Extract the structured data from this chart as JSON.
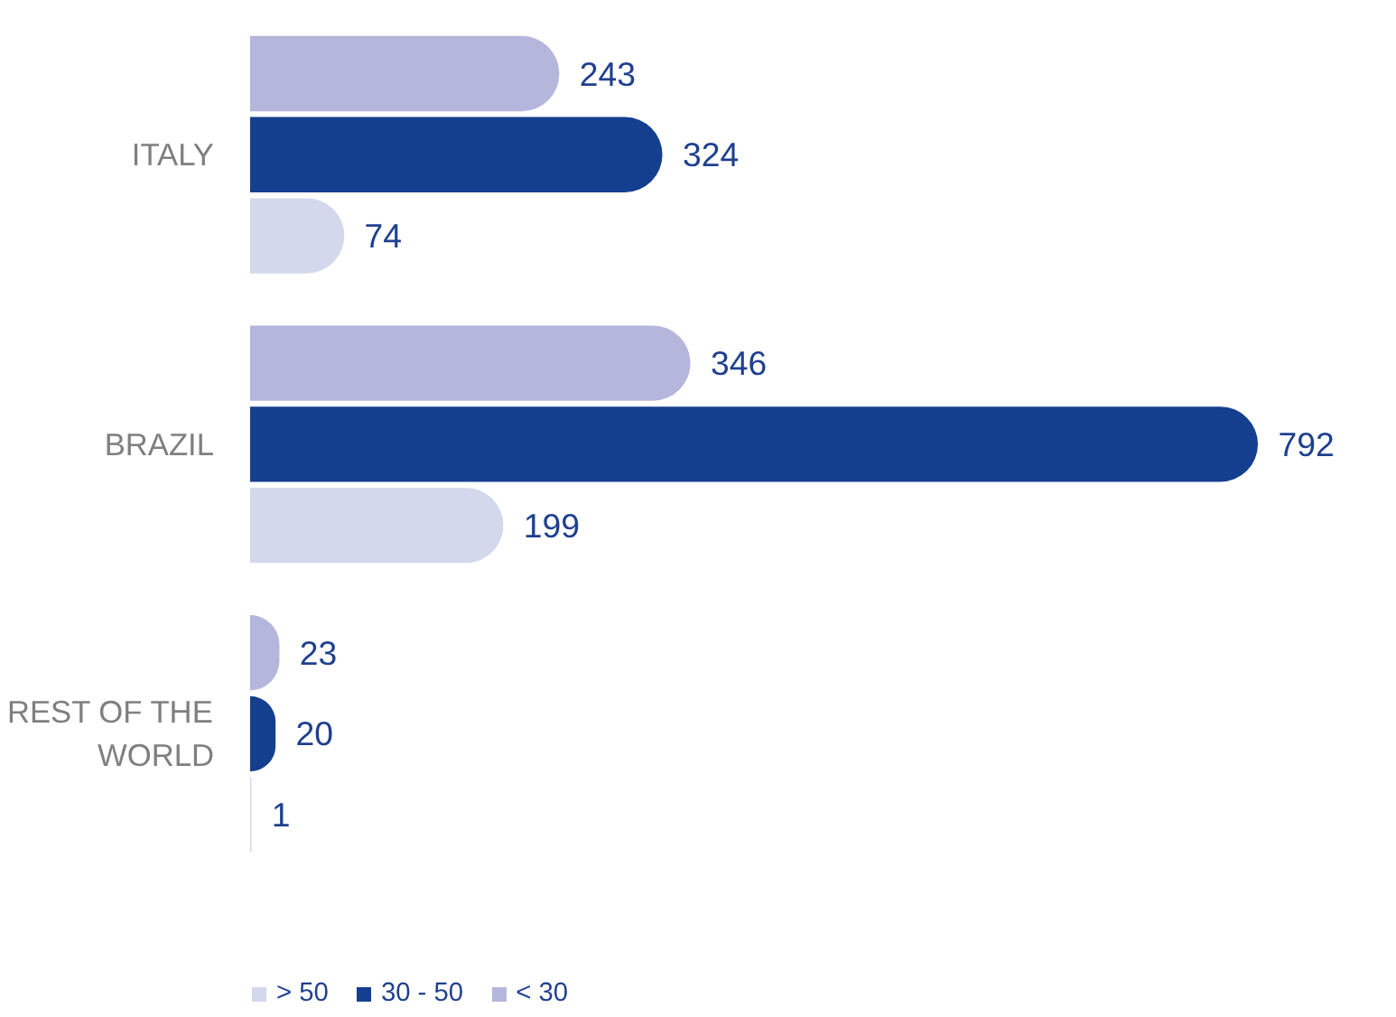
{
  "chart_data": {
    "type": "bar",
    "orientation": "horizontal",
    "data_labels": true,
    "categories": [
      "ITALY",
      "BRAZIL",
      "REST OF THE WORLD"
    ],
    "legend": "bottom left",
    "grid": false,
    "tick_labels": "y",
    "series": [
      {
        "name": "> 50",
        "color": "#d3d8ec",
        "values": [
          74,
          199,
          1
        ]
      },
      {
        "name": "30 - 50",
        "color": "#143f8f",
        "values": [
          324,
          792,
          20
        ]
      },
      {
        "name": "< 30",
        "color": "#b5b6dc",
        "values": [
          243,
          346,
          23
        ]
      }
    ]
  }
}
